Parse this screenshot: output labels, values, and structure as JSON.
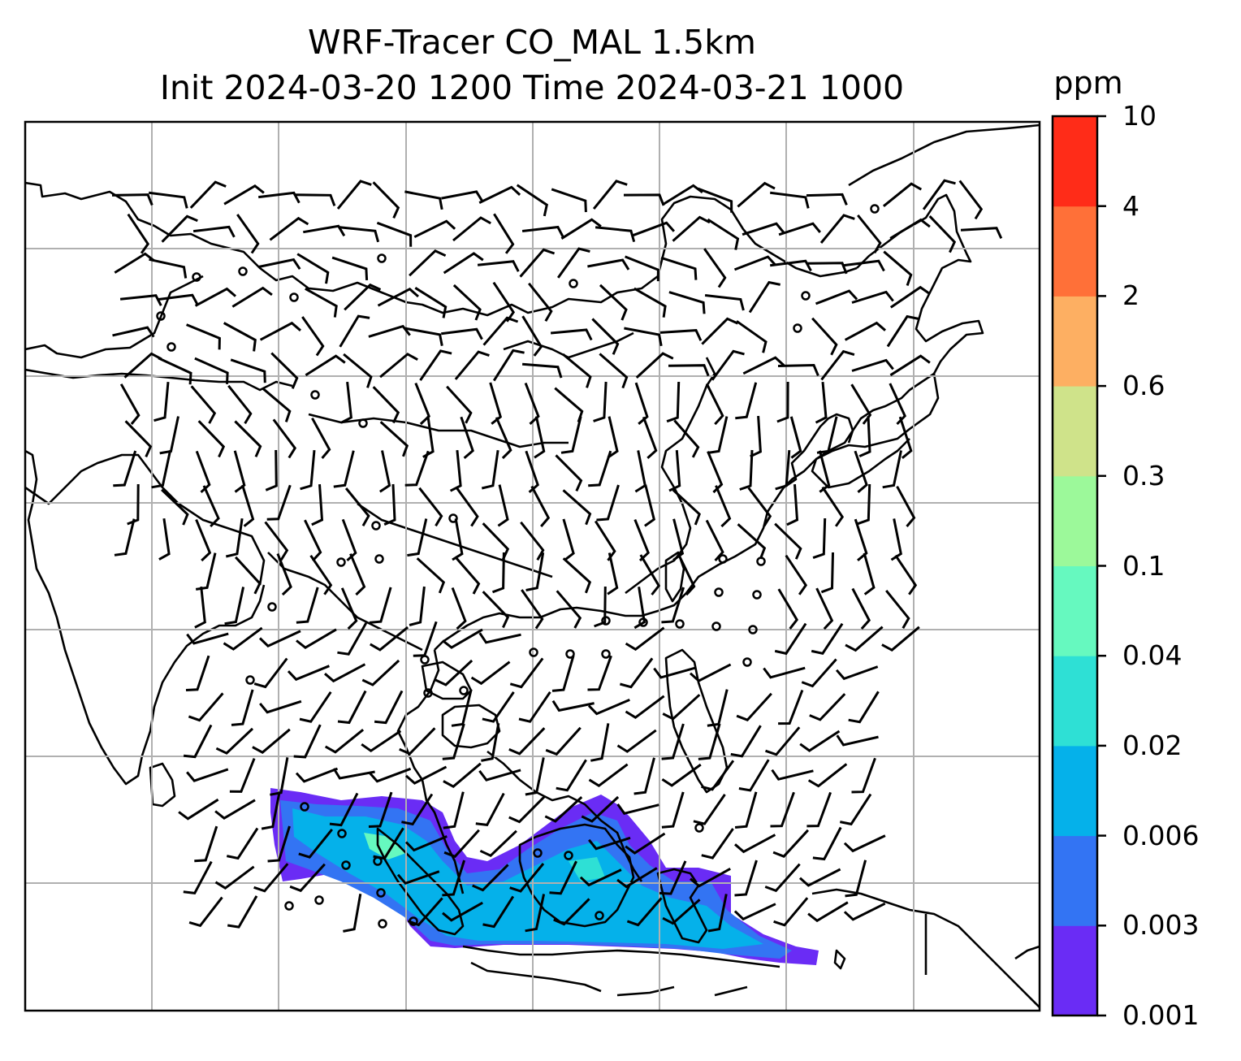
{
  "map": {
    "title_line1": "WRF-Tracer CO_MAL 1.5km",
    "title_line2": "Init 2024-03-20 1200 Time 2024-03-21 1000",
    "variable": "CO_MAL tracer",
    "overlay": "wind barbs",
    "gridlines": true
  },
  "colorbar": {
    "unit": "ppm",
    "levels": [
      "0.001",
      "0.003",
      "0.006",
      "0.02",
      "0.04",
      "0.1",
      "0.3",
      "0.6",
      "2",
      "4",
      "10"
    ],
    "colors": [
      "#6a2cf5",
      "#3374f3",
      "#05b1ea",
      "#2ee0d5",
      "#66f9bf",
      "#9cf99a",
      "#cfe38a",
      "#fdaf62",
      "#ff7038",
      "#ff2c18"
    ]
  },
  "colors": {
    "plume_low": "#6a2cf5",
    "plume_mid": "#3374f3",
    "plume_high": "#05b1ea",
    "plume_peak": "#66f9bf",
    "coast": "#000000",
    "grid": "#b0b0b0"
  }
}
